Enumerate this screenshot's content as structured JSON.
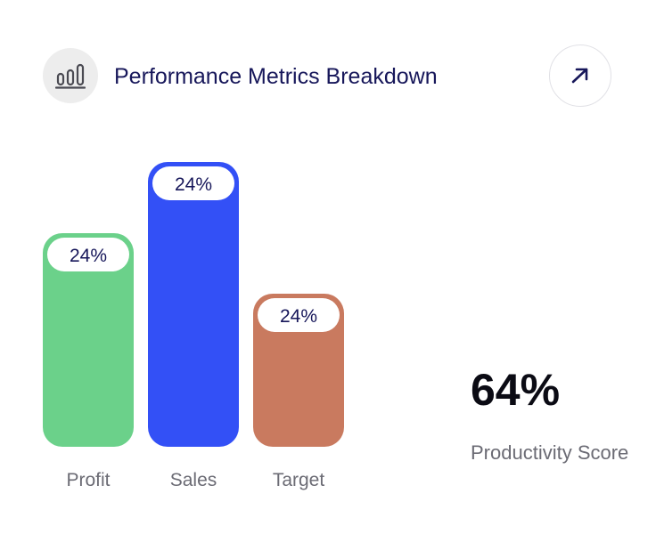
{
  "header": {
    "title": "Performance Metrics Breakdown",
    "chart_icon": "bar-chart-icon",
    "expand_icon": "arrow-up-right-icon"
  },
  "chart_data": {
    "type": "bar",
    "title": "Performance Metrics Breakdown",
    "categories": [
      "Profit",
      "Sales",
      "Target"
    ],
    "value_labels": [
      "24%",
      "24%",
      "24%"
    ],
    "colors": [
      "#6bd18a",
      "#3350f6",
      "#c97a5f"
    ],
    "xlabel": "",
    "ylabel": "",
    "grid": false,
    "legend": "none"
  },
  "kpi": {
    "value": "64%",
    "label": "Productivity Score"
  }
}
